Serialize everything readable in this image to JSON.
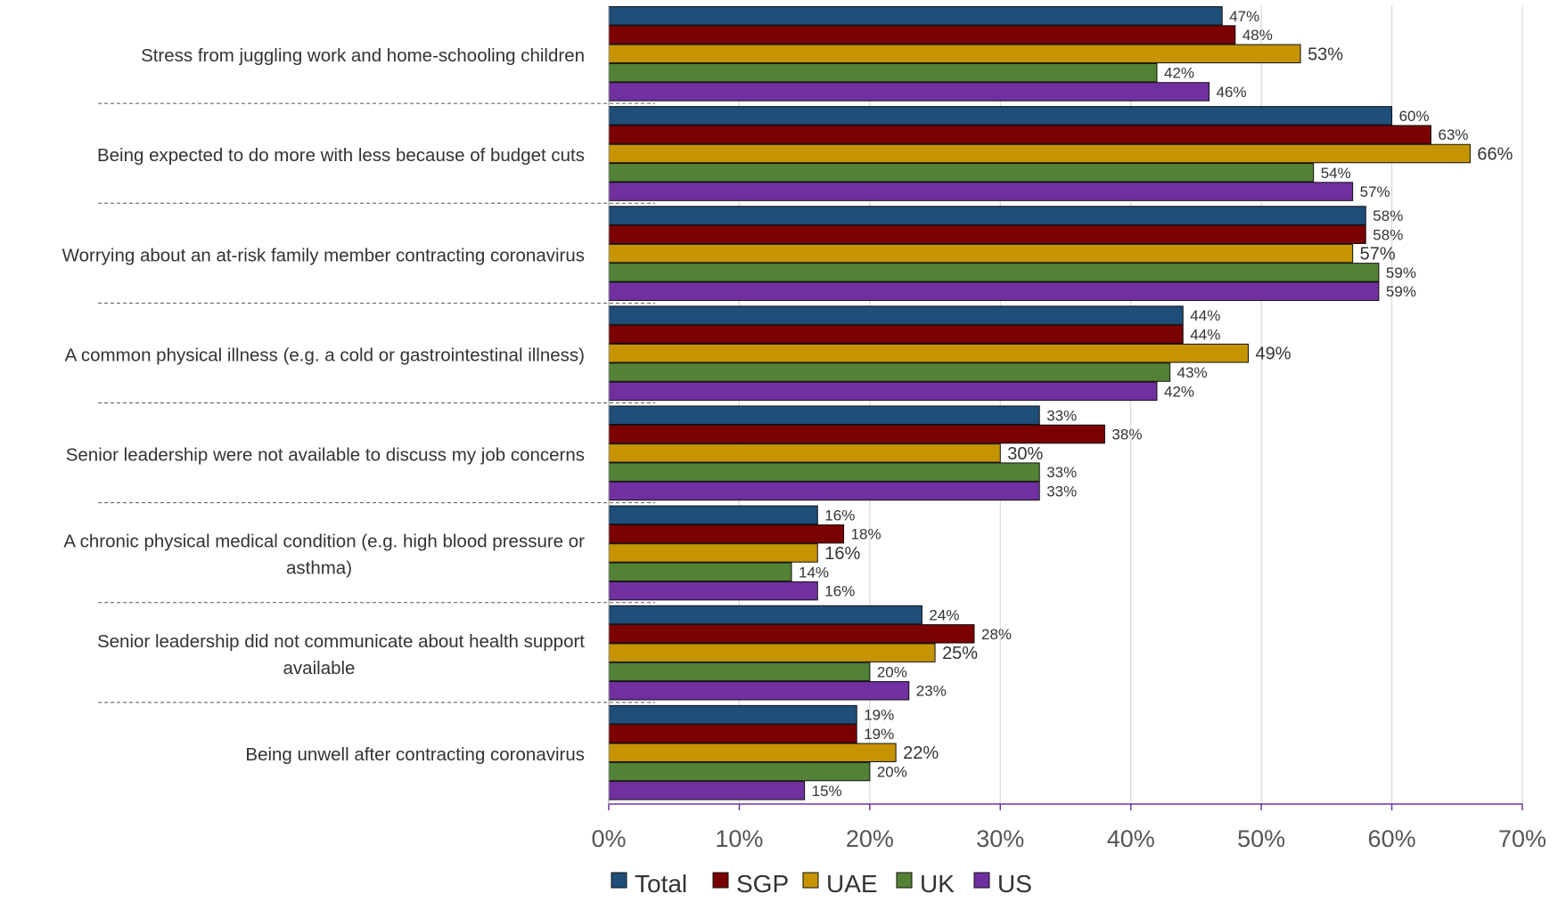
{
  "chart_data": {
    "type": "bar",
    "orientation": "horizontal",
    "categories": [
      "Stress from juggling work and home-schooling children",
      "Being expected to do more with less because of budget cuts",
      "Worrying about an at-risk family member contracting coronavirus",
      "A common physical illness (e.g. a cold or gastrointestinal illness)",
      "Senior leadership were not available to discuss my job concerns",
      "A chronic physical medical condition (e.g. high blood pressure or asthma)",
      "Senior leadership did not communicate about health support available",
      "Being unwell after contracting coronavirus"
    ],
    "category_lines": [
      [
        "Stress from juggling work and home-schooling children"
      ],
      [
        "Being expected to do more with less because of budget cuts"
      ],
      [
        "Worrying about an at-risk family member contracting coronavirus"
      ],
      [
        "A common physical illness (e.g. a cold or gastrointestinal illness)"
      ],
      [
        "Senior leadership were not available to discuss my job concerns"
      ],
      [
        "A chronic physical medical condition (e.g. high blood pressure or",
        "asthma)"
      ],
      [
        "Senior leadership did not communicate about health support",
        "available"
      ],
      [
        "Being unwell after contracting coronavirus"
      ]
    ],
    "series": [
      {
        "name": "Total",
        "color": "#1F4E79",
        "values": [
          47,
          60,
          58,
          44,
          33,
          16,
          24,
          19
        ]
      },
      {
        "name": "SGP",
        "color": "#7B0000",
        "values": [
          48,
          63,
          58,
          44,
          38,
          18,
          28,
          19
        ]
      },
      {
        "name": "UAE",
        "color": "#C59400",
        "values": [
          53,
          66,
          57,
          49,
          30,
          16,
          25,
          22
        ]
      },
      {
        "name": "UK",
        "color": "#538135",
        "values": [
          42,
          54,
          59,
          43,
          33,
          14,
          20,
          20
        ]
      },
      {
        "name": "US",
        "color": "#7030A0",
        "values": [
          46,
          57,
          59,
          42,
          33,
          16,
          23,
          15
        ]
      }
    ],
    "value_suffix": "%",
    "xlim": [
      0,
      70
    ],
    "xticks": [
      0,
      10,
      20,
      30,
      40,
      50,
      60,
      70
    ],
    "xtick_labels": [
      "0%",
      "10%",
      "20%",
      "30%",
      "40%",
      "50%",
      "60%",
      "70%"
    ],
    "grid": true,
    "legend_position": "bottom",
    "title": "",
    "xlabel": "",
    "ylabel": ""
  }
}
